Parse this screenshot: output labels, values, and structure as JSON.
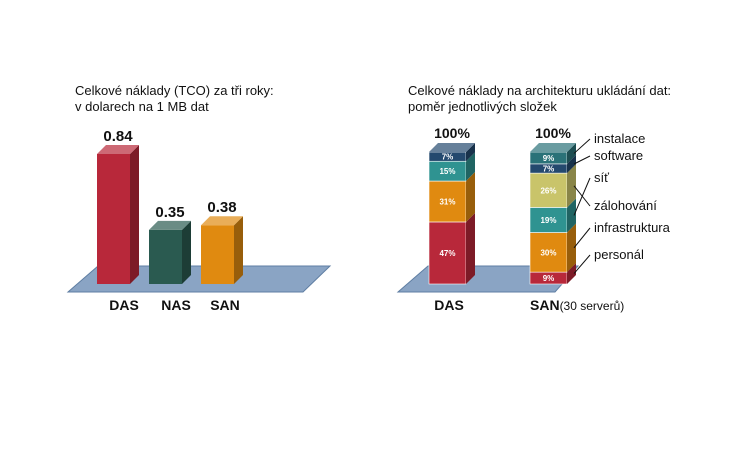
{
  "chart_data": [
    {
      "type": "bar",
      "title_lines": [
        "Celkové náklady (TCO) za tři roky:",
        "v dolarech na 1 MB dat"
      ],
      "categories": [
        "DAS",
        "NAS",
        "SAN"
      ],
      "values": [
        0.84,
        0.35,
        0.38
      ],
      "value_labels": [
        "0.84",
        "0.35",
        "0.38"
      ],
      "colors": [
        "#b8283a",
        "#2a5a50",
        "#e08a10"
      ],
      "ylim": [
        0,
        0.84
      ],
      "grid": false,
      "legend": "none"
    },
    {
      "type": "bar",
      "stacked": true,
      "title_lines": [
        "Celkové náklady na architekturu ukládání dat:",
        "poměr jednotlivých složek"
      ],
      "categories": [
        "DAS",
        "SAN"
      ],
      "category_suffix": [
        "",
        "(30 serverů)"
      ],
      "totals": [
        "100%",
        "100%"
      ],
      "components": [
        {
          "name": "personál",
          "color": "#b8283a"
        },
        {
          "name": "infrastruktura",
          "color": "#e08a10"
        },
        {
          "name": "zálohování",
          "color": "#c9c46a"
        },
        {
          "name": "síť",
          "color": "#2f9391"
        },
        {
          "name": "software",
          "color": "#24496e"
        },
        {
          "name": "instalace",
          "color": "#2a7278"
        }
      ],
      "series": [
        {
          "name": "DAS",
          "segments": [
            {
              "component": "personál",
              "value": 47,
              "label": "47%"
            },
            {
              "component": "infrastruktura",
              "value": 31,
              "label": "31%"
            },
            {
              "component": "síť",
              "value": 15,
              "label": "15%"
            },
            {
              "component": "software",
              "value": 7,
              "label": "7%"
            }
          ]
        },
        {
          "name": "SAN",
          "segments": [
            {
              "component": "personál",
              "value": 9,
              "label": "9%"
            },
            {
              "component": "infrastruktura",
              "value": 30,
              "label": "30%"
            },
            {
              "component": "síť",
              "value": 19,
              "label": "19%"
            },
            {
              "component": "zálohování",
              "value": 26,
              "label": "26%"
            },
            {
              "component": "software",
              "value": 7,
              "label": "7%"
            },
            {
              "component": "instalace",
              "value": 9,
              "label": "9%"
            }
          ]
        }
      ],
      "legend": "right"
    }
  ]
}
